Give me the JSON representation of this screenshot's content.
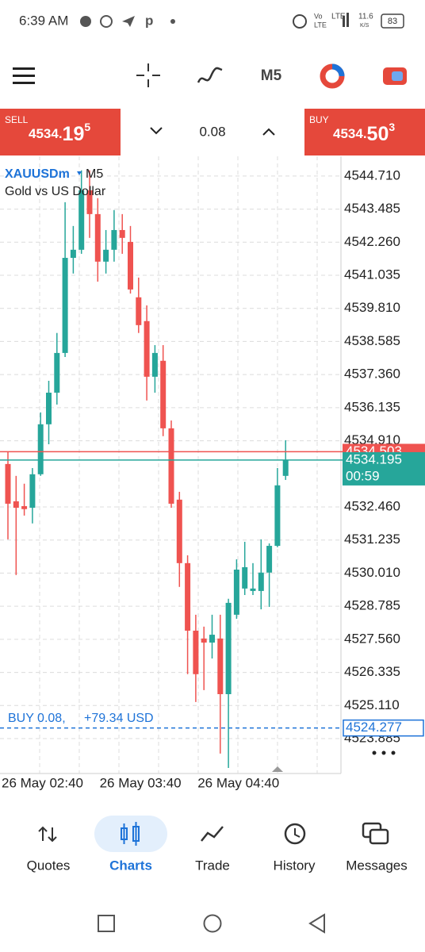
{
  "status_bar": {
    "time": "6:39 AM",
    "net1": "Vo",
    "net2": "LTE",
    "net3": "LTE",
    "speed": "11.6",
    "speed_unit": "K/S",
    "battery": "83"
  },
  "toolbar": {
    "timeframe": "M5"
  },
  "trade_panel": {
    "sell_label": "SELL",
    "sell_big": "4534.",
    "sell_pips": "19",
    "sell_point": "5",
    "volume": "0.08",
    "buy_label": "BUY",
    "buy_big": "4534.",
    "buy_pips": "50",
    "buy_point": "3"
  },
  "chart_data": {
    "type": "candlestick",
    "symbol": "XAUUSDm",
    "timeframe": "M5",
    "subtitle": "Gold vs US Dollar",
    "up_color": "#26a69a",
    "down_color": "#ef5350",
    "categories": [
      "26 May 02:40",
      null,
      null,
      null,
      null,
      null,
      null,
      null,
      null,
      null,
      null,
      null,
      "26 May 03:40",
      null,
      null,
      null,
      null,
      null,
      null,
      null,
      null,
      null,
      null,
      null,
      "26 May 04:40",
      null,
      null,
      null,
      null,
      null,
      null,
      null,
      null,
      null,
      null
    ],
    "open": [
      4534.05,
      4532.67,
      4532.49,
      4532.43,
      4533.67,
      4535.52,
      4536.69,
      4538.16,
      4541.68,
      4541.98,
      4544.18,
      4543.3,
      4541.54,
      4541.98,
      4542.71,
      4542.27,
      4540.22,
      4539.34,
      4537.28,
      4537.87,
      4535.37,
      4532.73,
      4530.38,
      4527.88,
      4527.59,
      4527.44,
      4527.59,
      4525.53,
      4528.47,
      4529.44,
      4529.35,
      4529.35,
      4530.03,
      4531.02,
      4533.61
    ],
    "high": [
      4534.49,
      4533.61,
      4533.32,
      4533.9,
      4535.96,
      4537.13,
      4538.9,
      4543.74,
      4542.86,
      4544.92,
      4544.92,
      4543.89,
      4542.71,
      4543.45,
      4543.3,
      4542.86,
      4540.95,
      4539.92,
      4538.45,
      4538.45,
      4535.66,
      4533.02,
      4530.67,
      4528.47,
      4528.03,
      4528.47,
      4528.47,
      4529.06,
      4530.52,
      4531.17,
      4530.38,
      4531.26,
      4531.11,
      4533.9,
      4534.93
    ],
    "low": [
      4531.26,
      4529.94,
      4532.14,
      4531.85,
      4533.61,
      4534.78,
      4536.25,
      4538.01,
      4541.1,
      4541.83,
      4542.42,
      4540.8,
      4541.1,
      4541.54,
      4541.83,
      4540.36,
      4538.9,
      4536.4,
      4536.69,
      4535.08,
      4532.43,
      4529.5,
      4526.27,
      4525.24,
      4525.68,
      4526.85,
      4523.33,
      4522.8,
      4528.32,
      4529.2,
      4529.2,
      4528.67,
      4528.76,
      4530.97,
      4533.46
    ],
    "close": [
      4532.58,
      4532.43,
      4532.38,
      4533.67,
      4535.52,
      4536.69,
      4538.16,
      4541.68,
      4541.98,
      4544.18,
      4543.3,
      4541.54,
      4541.98,
      4542.71,
      4542.42,
      4540.51,
      4539.19,
      4537.28,
      4538.16,
      4535.37,
      4532.58,
      4530.38,
      4527.88,
      4526.27,
      4527.44,
      4527.73,
      4525.53,
      4528.91,
      4530.14,
      4530.23,
      4529.44,
      4530.03,
      4531.02,
      4533.26,
      4534.2
    ],
    "ylim": [
      4522.74,
      4545.44
    ],
    "yticks": [
      {
        "value": 4544.71,
        "label": "4544.710"
      },
      4543.485,
      {
        "value": 4542.26,
        "label": "4542.260"
      },
      4541.035,
      {
        "value": 4539.81,
        "label": "4539.810"
      },
      4538.585,
      {
        "value": 4537.36,
        "label": "4537.360"
      },
      4536.135,
      {
        "value": 4534.91,
        "label": "4534.910"
      },
      {
        "value": 4532.46,
        "label": "4532.460"
      },
      4531.235,
      {
        "value": 4530.01,
        "label": "4530.010"
      },
      4528.785,
      {
        "value": 4527.56,
        "label": "4527.560"
      },
      4526.335,
      {
        "value": 4525.11,
        "label": "4525.110"
      },
      4523.885
    ],
    "grid": true,
    "ask": 4534.503,
    "bid": 4534.195,
    "countdown": "00:59",
    "position": {
      "label": "BUY 0.08,",
      "profit": "+79.34 USD",
      "price": 4524.277,
      "color": "#1e73d8"
    }
  },
  "bottom_nav": [
    "Quotes",
    "Charts",
    "Trade",
    "History",
    "Messages"
  ]
}
